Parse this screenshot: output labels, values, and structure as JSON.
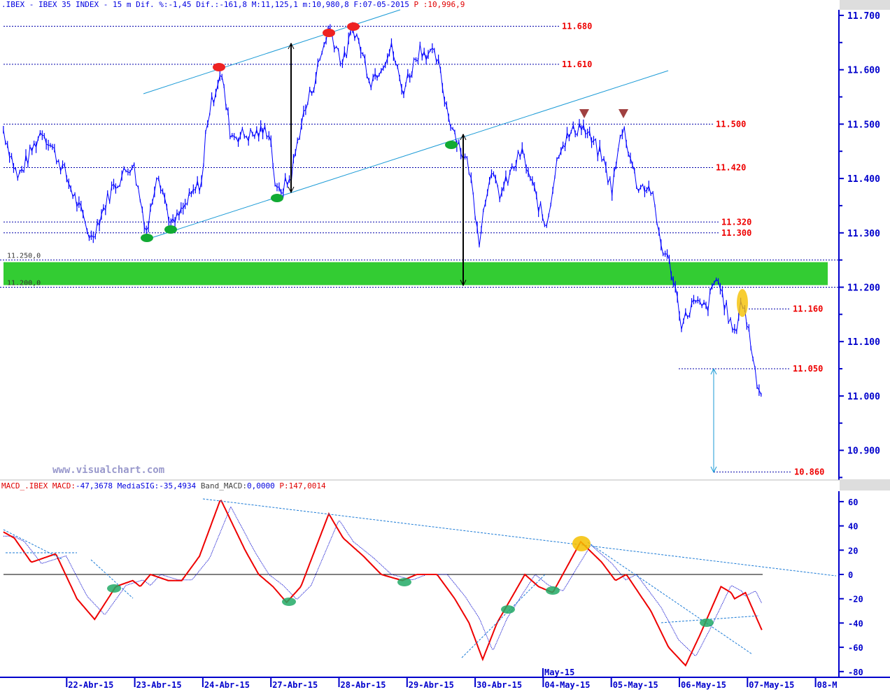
{
  "header": {
    "symbol": ".IBEX - IBEX 35 INDEX -",
    "interval": "15 m",
    "dif_pct_label": "Dif. %:",
    "dif_pct": "-1,45",
    "dif_label": "Dif.:",
    "dif": "-161,8",
    "max_label": "M:",
    "max": "11,125,1",
    "min_label": "m:",
    "min": "10,980,8",
    "date_label": "F:",
    "date": "07-05-2015",
    "price_label": "P :",
    "price": "10,996,9"
  },
  "macd_header": {
    "name": "MACD_.IBEX",
    "macd_label": "MACD:",
    "macd": "-47,3678",
    "sig_label": "MediaSIG:",
    "sig": "-35,4934",
    "band_label": "Band_MACD:",
    "band": "0,0000",
    "p_label": "P:",
    "p": "147,0014"
  },
  "watermark": "www.visualchart.com",
  "window_buttons": {
    "minimize": "_",
    "maximize": "□",
    "close": "x"
  },
  "colors": {
    "price": "#0000ff",
    "macd": "#ee0000",
    "signal": "#0000cc",
    "band": "#33cc33",
    "level_label": "#ee0000",
    "axis": "#0000cc"
  },
  "chart_data": [
    {
      "type": "line",
      "title": "IBEX 35 INDEX 15 m",
      "ylim": [
        10850,
        11720
      ],
      "yticks": [
        "11.700",
        "11.600",
        "11.500",
        "11.400",
        "11.300",
        "11.200",
        "11.100",
        "11.000",
        "10.900"
      ],
      "ytick_values": [
        11700,
        11600,
        11500,
        11400,
        11300,
        11200,
        11100,
        11000,
        10900
      ],
      "xticks": [
        "22-Abr-15",
        "23-Abr-15",
        "24-Abr-15",
        "27-Abr-15",
        "28-Abr-15",
        "29-Abr-15",
        "30-Abr-15",
        "04-May-15",
        "05-May-15",
        "06-May-15",
        "07-May-15",
        "08-M"
      ],
      "xtick_days": [
        1,
        2,
        3,
        4,
        5,
        6,
        7,
        8,
        9,
        10,
        11,
        12
      ],
      "month_label": "May-15",
      "levels": [
        {
          "value": 11680,
          "label": "11.680"
        },
        {
          "value": 11610,
          "label": "11.610"
        },
        {
          "value": 11500,
          "label": "11.500"
        },
        {
          "value": 11420,
          "label": "11.420"
        },
        {
          "value": 11320,
          "label": "11.320"
        },
        {
          "value": 11300,
          "label": "11.300"
        },
        {
          "value": 11160,
          "label": "11.160"
        },
        {
          "value": 11050,
          "label": "11.050"
        },
        {
          "value": 10860,
          "label": "10.860"
        }
      ],
      "zone": {
        "low": 11200,
        "high": 11250,
        "low_label": "11.200,0",
        "high_label": "11.250,0"
      },
      "series": [
        {
          "name": "IBEX",
          "points": [
            [
              0.05,
              11490
            ],
            [
              0.26,
              11400
            ],
            [
              0.62,
              11490
            ],
            [
              0.92,
              11420
            ],
            [
              1.34,
              11290
            ],
            [
              1.64,
              11380
            ],
            [
              1.95,
              11430
            ],
            [
              2.16,
              11300
            ],
            [
              2.31,
              11420
            ],
            [
              2.52,
              11310
            ],
            [
              2.98,
              11400
            ],
            [
              3.03,
              11500
            ],
            [
              3.24,
              11600
            ],
            [
              3.39,
              11480
            ],
            [
              3.7,
              11480
            ],
            [
              3.96,
              11490
            ],
            [
              4.06,
              11370
            ],
            [
              4.27,
              11400
            ],
            [
              4.42,
              11500
            ],
            [
              4.62,
              11580
            ],
            [
              4.83,
              11680
            ],
            [
              5.04,
              11610
            ],
            [
              5.19,
              11680
            ],
            [
              5.45,
              11580
            ],
            [
              5.76,
              11640
            ],
            [
              5.91,
              11560
            ],
            [
              6.17,
              11640
            ],
            [
              6.42,
              11620
            ],
            [
              6.58,
              11520
            ],
            [
              6.78,
              11450
            ],
            [
              6.89,
              11420
            ],
            [
              7.04,
              11290
            ],
            [
              7.19,
              11410
            ],
            [
              7.35,
              11370
            ],
            [
              7.66,
              11450
            ],
            [
              7.81,
              11390
            ],
            [
              8.02,
              11310
            ],
            [
              8.22,
              11460
            ],
            [
              8.53,
              11500
            ],
            [
              8.84,
              11440
            ],
            [
              8.99,
              11380
            ],
            [
              9.15,
              11500
            ],
            [
              9.35,
              11390
            ],
            [
              9.56,
              11380
            ],
            [
              9.71,
              11280
            ],
            [
              9.87,
              11230
            ],
            [
              10.02,
              11130
            ],
            [
              10.17,
              11170
            ],
            [
              10.38,
              11160
            ],
            [
              10.53,
              11220
            ],
            [
              10.69,
              11150
            ],
            [
              10.79,
              11110
            ],
            [
              10.89,
              11180
            ],
            [
              11.0,
              11120
            ],
            [
              11.1,
              11040
            ],
            [
              11.2,
              10995
            ]
          ]
        }
      ]
    },
    {
      "type": "line",
      "title": "MACD",
      "ylim": [
        -85,
        65
      ],
      "yticks": [
        "60",
        "40",
        "20",
        "0",
        "-20",
        "-40",
        "-60",
        "-80"
      ],
      "ytick_values": [
        60,
        40,
        20,
        0,
        -20,
        -40,
        -60,
        -80
      ],
      "series": [
        {
          "name": "MACD",
          "points": [
            [
              0.05,
              35
            ],
            [
              0.21,
              30
            ],
            [
              0.46,
              10
            ],
            [
              0.82,
              17
            ],
            [
              1.13,
              -20
            ],
            [
              1.39,
              -37
            ],
            [
              1.7,
              -10
            ],
            [
              1.95,
              -5
            ],
            [
              2.06,
              -10
            ],
            [
              2.21,
              0
            ],
            [
              2.47,
              -5
            ],
            [
              2.67,
              -5
            ],
            [
              2.93,
              15
            ],
            [
              3.24,
              62
            ],
            [
              3.6,
              20
            ],
            [
              3.8,
              0
            ],
            [
              4.01,
              -10
            ],
            [
              4.21,
              -23
            ],
            [
              4.42,
              -10
            ],
            [
              4.83,
              50
            ],
            [
              5.04,
              30
            ],
            [
              5.34,
              15
            ],
            [
              5.6,
              0
            ],
            [
              5.91,
              -5
            ],
            [
              6.12,
              0
            ],
            [
              6.42,
              0
            ],
            [
              6.68,
              -20
            ],
            [
              6.89,
              -40
            ],
            [
              7.09,
              -70
            ],
            [
              7.3,
              -40
            ],
            [
              7.71,
              0
            ],
            [
              7.91,
              -10
            ],
            [
              8.12,
              -15
            ],
            [
              8.53,
              27
            ],
            [
              8.84,
              10
            ],
            [
              9.04,
              -5
            ],
            [
              9.2,
              0
            ],
            [
              9.56,
              -30
            ],
            [
              9.82,
              -60
            ],
            [
              10.07,
              -75
            ],
            [
              10.28,
              -50
            ],
            [
              10.59,
              -10
            ],
            [
              10.74,
              -15
            ],
            [
              10.79,
              -20
            ],
            [
              10.95,
              -15
            ],
            [
              11.2,
              -47
            ]
          ]
        },
        {
          "name": "MediaSIG",
          "lag_of": "MACD"
        }
      ]
    }
  ]
}
